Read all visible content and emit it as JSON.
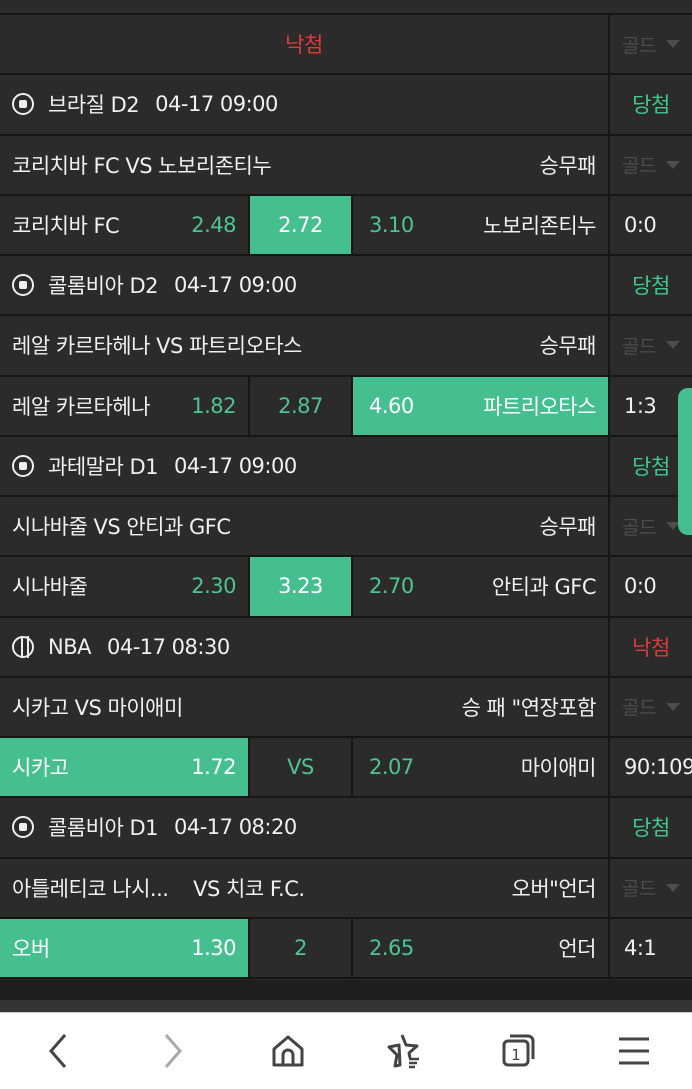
{
  "header": {
    "status": "낙첨",
    "gold_label": "골드"
  },
  "games": [
    {
      "sport": "soccer",
      "league": "브라질 D2",
      "time": "04-17 09:00",
      "result": "당첨",
      "result_color": "#3fc98c",
      "match": "코리치바 FC VS 노보리존티누",
      "market": "승무패",
      "home": "코리치바 FC",
      "home_odd": "2.48",
      "mid": "2.72",
      "away_odd": "3.10",
      "away": "노보리존티누",
      "score": "0:0",
      "selected": "mid"
    },
    {
      "sport": "soccer",
      "league": "콜롬비아 D2",
      "time": "04-17 09:00",
      "result": "당첨",
      "result_color": "#3fc98c",
      "match": "레알 카르타헤나 VS 파트리오타스",
      "market": "승무패",
      "home": "레알 카르타헤나",
      "home_odd": "1.82",
      "mid": "2.87",
      "away_odd": "4.60",
      "away": "파트리오타스",
      "score": "1:3",
      "selected": "away"
    },
    {
      "sport": "soccer",
      "league": "과테말라 D1",
      "time": "04-17 09:00",
      "result": "당첨",
      "result_color": "#3fc98c",
      "match": "시나바줄 VS 안티과 GFC",
      "market": "승무패",
      "home": "시나바줄",
      "home_odd": "2.30",
      "mid": "3.23",
      "away_odd": "2.70",
      "away": "안티과 GFC",
      "score": "0:0",
      "selected": "mid"
    },
    {
      "sport": "basketball",
      "league": "NBA",
      "time": "04-17 08:30",
      "result": "낙첨",
      "result_color": "#e03a3a",
      "match": "시카고 VS 마이애미",
      "market": "승 패 \"연장포함",
      "home": "시카고",
      "home_odd": "1.72",
      "mid": "VS",
      "away_odd": "2.07",
      "away": "마이애미",
      "score": "90:109",
      "selected": "home"
    },
    {
      "sport": "soccer",
      "league": "콜롬비아 D1",
      "time": "04-17 08:20",
      "result": "당첨",
      "result_color": "#3fc98c",
      "match": "아틀레티코 나시...    VS 치코 F.C.",
      "market": "오버\"언더",
      "home": "오버",
      "home_odd": "1.30",
      "mid": "2",
      "away_odd": "2.65",
      "away": "언더",
      "score": "4:1",
      "selected": "home"
    }
  ],
  "nav": [
    "back-icon",
    "forward-icon",
    "home-icon",
    "bookmarks-icon",
    "tabs-icon",
    "menu-icon"
  ],
  "nav_tab_count": "1",
  "colors": {
    "accent": "#45bf8f",
    "win": "#3fc98c",
    "lose": "#e03a3a"
  }
}
